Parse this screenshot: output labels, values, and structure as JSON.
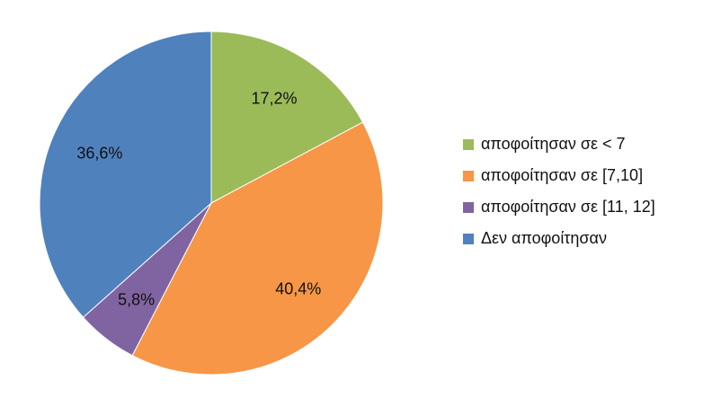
{
  "chart_data": {
    "type": "pie",
    "title": "",
    "legend_position": "right",
    "series": [
      {
        "name": "αποφοίτησαν σε < 7",
        "value": 17.2,
        "label": "17,2%",
        "color": "#9bbb59"
      },
      {
        "name": "αποφοίτησαν σε [7,10]",
        "value": 40.4,
        "label": "40,4%",
        "color": "#f79646"
      },
      {
        "name": "αποφοίτησαν σε [11, 12]",
        "value": 5.8,
        "label": "5,8%",
        "color": "#8064a2"
      },
      {
        "name": "Δεν αποφοίτησαν",
        "value": 36.6,
        "label": "36,6%",
        "color": "#4f81bd"
      }
    ]
  }
}
